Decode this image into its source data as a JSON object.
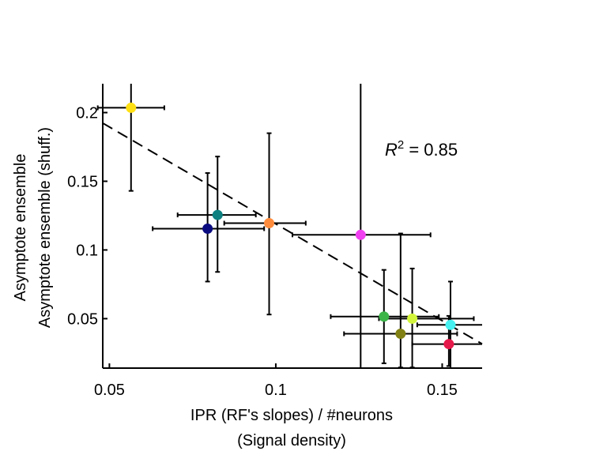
{
  "chart_data": {
    "type": "scatter",
    "title": "",
    "xlabel_lines": [
      "IPR (RF's slopes) / #neurons",
      "(Signal density)"
    ],
    "ylabel_lines": [
      "Asymptote ensemble",
      "Asymptote ensemble (shuff.)"
    ],
    "xlim": [
      0.048,
      0.162
    ],
    "ylim": [
      0.014,
      0.221
    ],
    "xticks": [
      0.05,
      0.1,
      0.15
    ],
    "xtick_labels": [
      "0.05",
      "0.1",
      "0.15"
    ],
    "yticks": [
      0.05,
      0.1,
      0.15,
      0.2
    ],
    "ytick_labels": [
      "0.05",
      "0.1",
      "0.15",
      "0.2"
    ],
    "grid": false,
    "legend": "none",
    "annotation": {
      "r_label": "R",
      "r_exp": "2",
      "r_value": " = 0.85"
    },
    "fit_line": {
      "style": "dashed",
      "color": "#000000",
      "slope": -1.41,
      "intercept": 0.26
    },
    "points": [
      {
        "x": 0.0565,
        "y": 0.2035,
        "xerr": [
          0.0465,
          0.0665
        ],
        "yerr": [
          0.143,
          0.221
        ],
        "color": "#ffe014"
      },
      {
        "x": 0.0795,
        "y": 0.1155,
        "xerr": [
          0.063,
          0.0965
        ],
        "yerr": [
          0.077,
          0.156
        ],
        "color": "#0b0b80"
      },
      {
        "x": 0.0825,
        "y": 0.1255,
        "xerr": [
          0.0705,
          0.094
        ],
        "yerr": [
          0.084,
          0.168
        ],
        "color": "#0e8080"
      },
      {
        "x": 0.098,
        "y": 0.1195,
        "xerr": [
          0.0845,
          0.109
        ],
        "yerr": [
          0.053,
          0.185
        ],
        "color": "#ff8c3c"
      },
      {
        "x": 0.1255,
        "y": 0.111,
        "xerr": [
          0.105,
          0.1465
        ],
        "yerr": [
          0.014,
          0.221
        ],
        "color": "#f040f0"
      },
      {
        "x": 0.1325,
        "y": 0.0515,
        "xerr": [
          0.1165,
          0.149
        ],
        "yerr": [
          0.0175,
          0.0855
        ],
        "color": "#3cb448"
      },
      {
        "x": 0.1375,
        "y": 0.039,
        "xerr": [
          0.1205,
          0.1545
        ],
        "yerr": [
          0.0145,
          0.112
        ],
        "color": "#808014"
      },
      {
        "x": 0.141,
        "y": 0.05,
        "xerr": [
          0.131,
          0.1595
        ],
        "yerr": [
          0.0145,
          0.0865
        ],
        "color": "#d2f53c"
      },
      {
        "x": 0.152,
        "y": 0.0315,
        "xerr": [
          0.141,
          0.162
        ],
        "yerr": [
          0.0155,
          0.052
        ],
        "color": "#e6194b"
      },
      {
        "x": 0.1525,
        "y": 0.0455,
        "xerr": [
          0.1425,
          0.162
        ],
        "yerr": [
          0.014,
          0.077
        ],
        "color": "#46f0f0"
      }
    ]
  }
}
